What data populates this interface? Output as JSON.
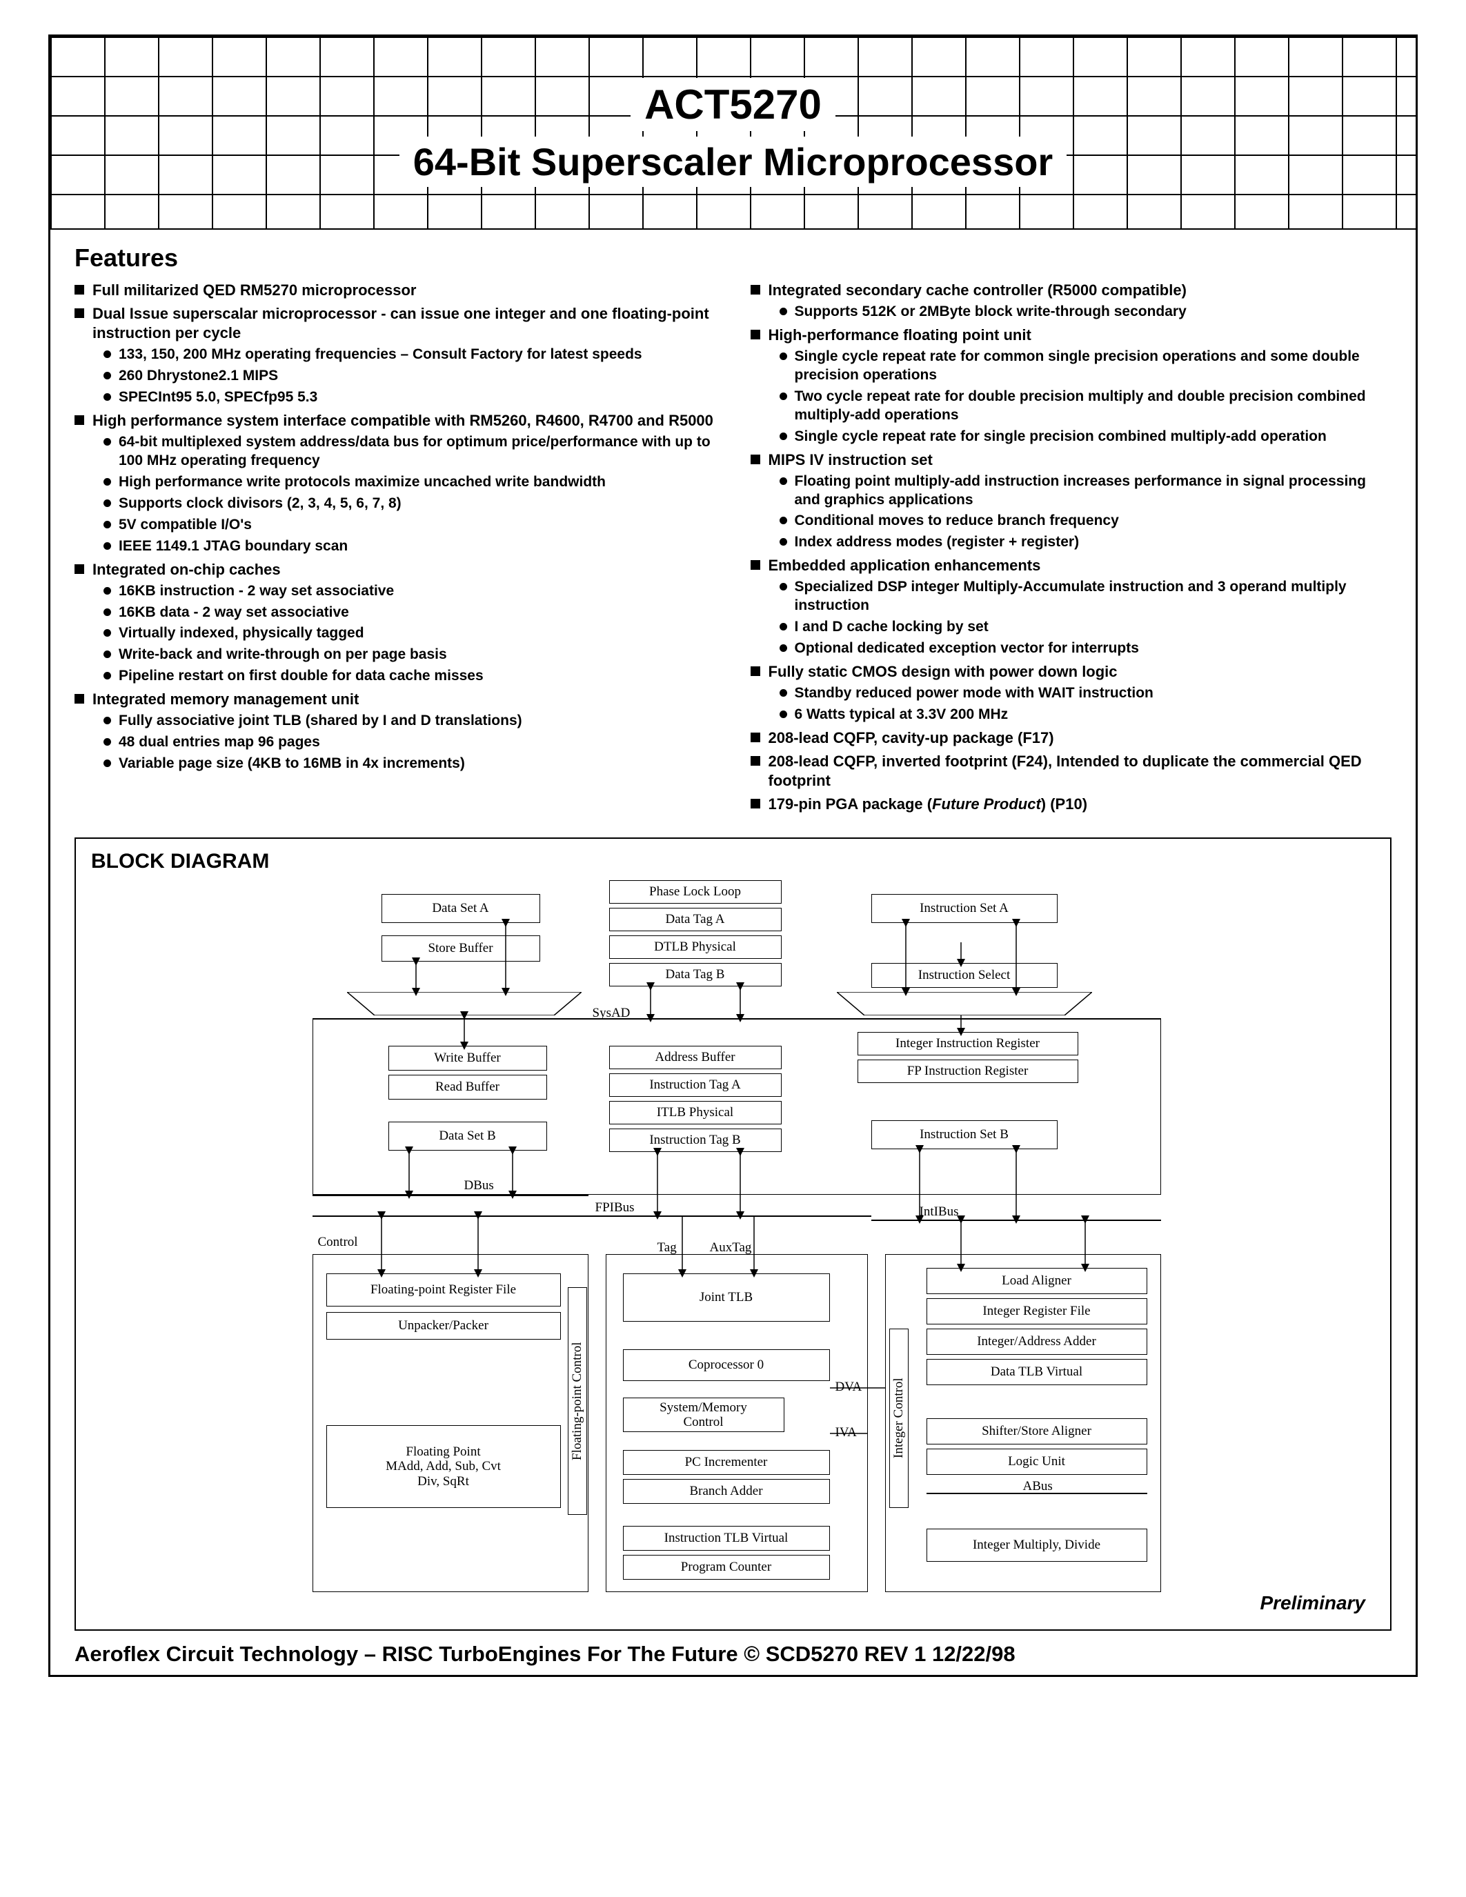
{
  "header": {
    "title_line1": "ACT5270",
    "title_line2": "64-Bit Superscaler Microprocessor",
    "grid_color": "#000000",
    "bg_color": "#ffffff"
  },
  "features": {
    "heading": "Features",
    "left": [
      {
        "text": "Full militarized QED RM5270 microprocessor"
      },
      {
        "text": "Dual Issue superscalar microprocessor - can issue one integer and one floating-point instruction per cycle",
        "sub": [
          "133, 150, 200 MHz operating frequencies – Consult Factory for latest speeds",
          "260 Dhrystone2.1 MIPS",
          "SPECInt95 5.0, SPECfp95 5.3"
        ]
      },
      {
        "text": "High performance system interface compatible with RM5260, R4600, R4700 and R5000",
        "sub": [
          "64-bit multiplexed system address/data bus for optimum price/performance with up to 100 MHz operating frequency",
          "High performance write protocols maximize uncached write bandwidth",
          "Supports clock divisors (2, 3, 4, 5, 6, 7, 8)",
          "5V compatible I/O's",
          "IEEE 1149.1 JTAG boundary scan"
        ]
      },
      {
        "text": "Integrated on-chip caches",
        "sub": [
          "16KB instruction - 2 way set associative",
          "16KB data - 2 way set associative",
          "Virtually indexed, physically tagged",
          "Write-back and write-through on per page basis",
          "Pipeline restart on first double for data cache misses"
        ]
      },
      {
        "text": "Integrated memory management unit",
        "sub": [
          "Fully associative joint TLB (shared by I and D translations)",
          "48 dual entries map 96 pages",
          "Variable page size (4KB to 16MB in 4x increments)"
        ]
      }
    ],
    "right": [
      {
        "text": "Integrated secondary cache controller (R5000 compatible)",
        "sub": [
          "Supports 512K or 2MByte block write-through secondary"
        ]
      },
      {
        "text": "High-performance floating point unit",
        "sub": [
          "Single cycle repeat rate for common single precision operations and some double precision operations",
          "Two cycle repeat rate for double precision multiply and double precision combined multiply-add operations",
          "Single cycle repeat rate for single precision combined multiply-add operation"
        ]
      },
      {
        "text": "MIPS IV instruction set",
        "sub": [
          "Floating point multiply-add instruction increases performance in signal processing and graphics applications",
          "Conditional moves to reduce branch frequency",
          "Index address modes (register + register)"
        ]
      },
      {
        "text": "Embedded application enhancements",
        "sub": [
          "Specialized DSP integer Multiply-Accumulate instruction and 3 operand multiply instruction",
          "I and D cache locking by set",
          "Optional dedicated exception vector for interrupts"
        ]
      },
      {
        "text": "Fully static CMOS design with power down logic",
        "sub": [
          "Standby reduced power mode with WAIT instruction",
          "6 Watts typical at 3.3V 200 MHz"
        ]
      },
      {
        "text": "208-lead CQFP, cavity-up package (F17)"
      },
      {
        "text": "208-lead CQFP, inverted footprint (F24), Intended to duplicate the commercial QED footprint"
      },
      {
        "text": "179-pin PGA package (Future Product) (P10)",
        "italic_segment": "Future Product"
      }
    ]
  },
  "block_diagram": {
    "heading": "BLOCK DIAGRAM",
    "preliminary": "Preliminary",
    "boxes": {
      "data_set_a": "Data Set A",
      "store_buffer": "Store Buffer",
      "phase_lock": "Phase Lock Loop",
      "data_tag_a": "Data Tag A",
      "dtlb_phys": "DTLB Physical",
      "data_tag_b": "Data Tag B",
      "instr_set_a": "Instruction Set A",
      "instr_select": "Instruction Select",
      "write_buffer": "Write Buffer",
      "read_buffer": "Read Buffer",
      "data_set_b": "Data Set B",
      "addr_buffer": "Address Buffer",
      "instr_tag_a": "Instruction Tag A",
      "itlb_phys": "ITLB Physical",
      "instr_tag_b": "Instruction Tag B",
      "int_instr_reg": "Integer Instruction Register",
      "fp_instr_reg": "FP Instruction Register",
      "instr_set_b": "Instruction Set B",
      "fp_reg_file": "Floating-point Register File",
      "unpacker": "Unpacker/Packer",
      "fp_unit": "Floating Point\nMAdd, Add, Sub, Cvt\nDiv, SqRt",
      "fp_control_v": "Floating-point Control",
      "joint_tlb": "Joint TLB",
      "coproc0": "Coprocessor 0",
      "sysmem": "System/Memory\nControl",
      "pc_inc": "PC Incrementer",
      "branch_adder": "Branch Adder",
      "instr_tlb_v": "Instruction TLB Virtual",
      "prog_counter": "Program Counter",
      "int_control_v": "Integer Control",
      "load_aligner": "Load Aligner",
      "int_reg_file": "Integer Register File",
      "int_addr_adder": "Integer/Address Adder",
      "data_tlb_v": "Data TLB Virtual",
      "shifter": "Shifter/Store Aligner",
      "logic_unit": "Logic Unit",
      "int_mult": "Integer Multiply, Divide"
    },
    "labels": {
      "sysad": "SysAD",
      "dbus": "DBus",
      "fpibus": "FPIBus",
      "intibus": "IntIBus",
      "control": "Control",
      "tag": "Tag",
      "auxtag": "AuxTag",
      "dva": "DVA",
      "iva": "IVA",
      "abus": "ABus"
    }
  },
  "footer": {
    "text": "eroflex Circuit Technology  – RISC TurboEngines For The Future © SCD5270 REV 1  12/22/98"
  },
  "colors": {
    "text": "#000000",
    "bg": "#ffffff",
    "border": "#000000"
  }
}
